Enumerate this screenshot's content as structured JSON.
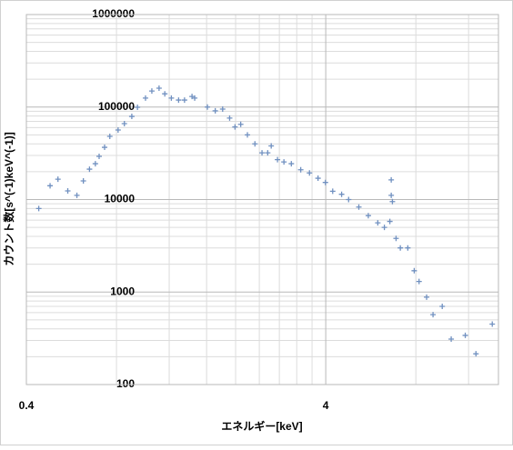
{
  "chart_data": {
    "type": "scatter",
    "x_label": "エネルギー[keV]",
    "y_label": "カウント数[s^(-1)keV^(-1)]",
    "log_x": true,
    "log_y": true,
    "grid": true,
    "minor_grid": true,
    "marker": "+",
    "xlim": [
      0.4,
      15.1
    ],
    "xticks": [
      0.4,
      4
    ],
    "ylim": [
      100,
      1000000
    ],
    "yticks": [
      100,
      1000,
      10000,
      100000,
      1000000
    ],
    "series": [
      {
        "color": "#7090c0",
        "x": [
          0.44,
          0.48,
          0.51,
          0.55,
          0.59,
          0.62,
          0.65,
          0.68,
          0.7,
          0.73,
          0.76,
          0.81,
          0.85,
          0.9,
          0.94,
          1.0,
          1.05,
          1.11,
          1.16,
          1.22,
          1.29,
          1.35,
          1.43,
          1.46,
          1.61,
          1.71,
          1.81,
          1.91,
          1.99,
          2.08,
          2.19,
          2.32,
          2.45,
          2.56,
          2.63,
          2.76,
          2.9,
          3.07,
          3.3,
          3.53,
          3.77,
          3.99,
          4.22,
          4.52,
          4.77,
          5.16,
          5.55,
          5.97,
          6.28,
          6.55,
          6.62,
          6.62,
          6.68,
          6.87,
          7.1,
          7.52,
          7.9,
          8.2,
          8.69,
          9.13,
          9.8,
          10.5,
          11.7,
          12.7,
          14.4
        ],
        "values": [
          8000,
          14100,
          16600,
          12400,
          11100,
          15900,
          21300,
          24400,
          29300,
          36700,
          48200,
          56500,
          66200,
          79200,
          99500,
          125000,
          149000,
          160000,
          139000,
          125000,
          119000,
          119000,
          130000,
          125000,
          100000,
          91000,
          95000,
          76000,
          61000,
          65000,
          50000,
          40000,
          32000,
          32000,
          38000,
          27000,
          25500,
          24400,
          21000,
          19400,
          17000,
          15300,
          12300,
          11400,
          10000,
          8300,
          6700,
          5600,
          5000,
          5800,
          16300,
          11100,
          9500,
          3800,
          3000,
          3000,
          1700,
          1300,
          880,
          570,
          700,
          310,
          340,
          215,
          450
        ]
      }
    ]
  }
}
